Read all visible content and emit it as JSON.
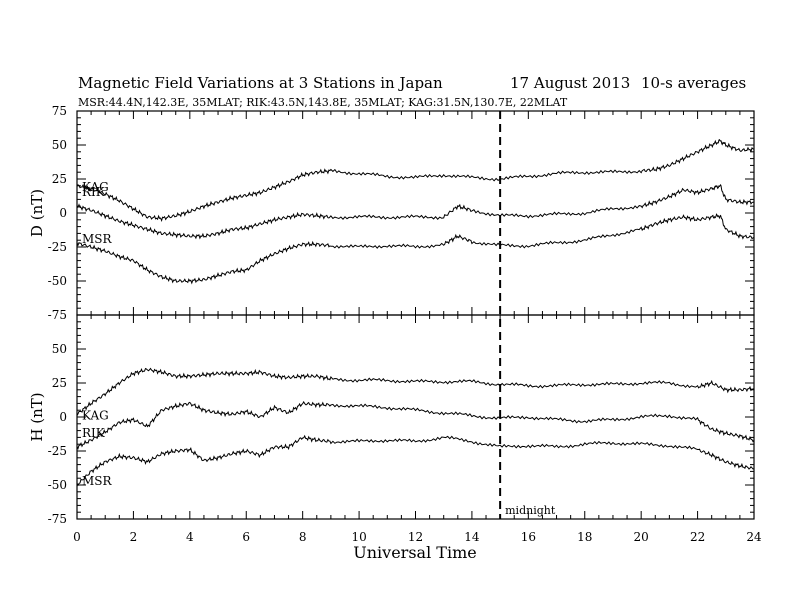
{
  "chart_data": {
    "type": "line",
    "title": "Magnetic Field Variations at 3 Stations in Japan",
    "date": "17  August  2013",
    "averaging": "10-s averages",
    "subtitle": "MSR:44.4N,142.3E, 35MLAT;  RIK:43.5N,143.8E, 35MLAT;  KAG:31.5N,130.7E, 22MLAT",
    "xlabel": "Universal Time",
    "xlim": [
      0,
      24
    ],
    "xticks": [
      "0",
      "2",
      "4",
      "6",
      "8",
      "10",
      "12",
      "14",
      "16",
      "18",
      "20",
      "22",
      "24"
    ],
    "marker": {
      "x": 15,
      "label": "midnight"
    },
    "panels": [
      {
        "ylabel": "D (nT)",
        "ylim": [
          -75,
          75
        ],
        "yticks": [
          "75",
          "50",
          "25",
          "0",
          "-25",
          "-50",
          "-75"
        ],
        "series": [
          {
            "name": "KAG",
            "x": [
              0,
              0.5,
              1,
              1.5,
              2,
              2.5,
              3,
              3.5,
              4,
              4.5,
              5,
              5.5,
              6,
              6.5,
              7,
              7.5,
              8,
              8.5,
              9,
              10,
              11,
              12,
              13,
              14,
              15,
              16,
              17,
              18,
              19,
              20,
              20.5,
              21,
              21.5,
              22,
              22.5,
              22.8,
              23,
              23.5,
              24
            ],
            "y": [
              20,
              18,
              14,
              9,
              3,
              -3,
              -4,
              -2,
              1,
              5,
              8,
              11,
              13,
              15,
              19,
              23,
              28,
              30,
              31,
              29,
              27,
              26,
              28,
              26,
              25,
              27,
              29,
              30,
              30,
              31,
              32,
              35,
              40,
              45,
              50,
              53,
              50,
              46,
              47
            ]
          },
          {
            "name": "RIK",
            "x": [
              0,
              0.5,
              1,
              1.5,
              2,
              2.5,
              3,
              3.5,
              4,
              4.5,
              5,
              5.5,
              6,
              6.5,
              7,
              7.5,
              8,
              8.5,
              9,
              10,
              11,
              12,
              13,
              13.5,
              14,
              15,
              16,
              17,
              18,
              19,
              20,
              20.5,
              21,
              21.5,
              22,
              22.5,
              22.8,
              23,
              23.5,
              24
            ],
            "y": [
              5,
              2,
              -2,
              -6,
              -9,
              -12,
              -15,
              -16,
              -17,
              -17,
              -15,
              -12,
              -11,
              -8,
              -5,
              -3,
              -1,
              -2,
              -3,
              -3,
              -3,
              -3,
              -3,
              5,
              2,
              -2,
              -2,
              -1,
              0,
              3,
              5,
              8,
              12,
              17,
              15,
              18,
              20,
              10,
              8,
              8
            ]
          },
          {
            "name": "MSR",
            "x": [
              0,
              0.5,
              1,
              1.5,
              2,
              2.5,
              3,
              3.5,
              4,
              4.5,
              5,
              5.5,
              6,
              6.5,
              7,
              7.5,
              8,
              8.5,
              9,
              10,
              11,
              12,
              13,
              13.5,
              14,
              15,
              16,
              17,
              18,
              19,
              20,
              20.5,
              21,
              21.5,
              22,
              22.5,
              22.8,
              23,
              23.5,
              24
            ],
            "y": [
              -22,
              -25,
              -28,
              -32,
              -35,
              -42,
              -47,
              -50,
              -50,
              -49,
              -46,
              -43,
              -42,
              -35,
              -30,
              -26,
              -23,
              -23,
              -24,
              -25,
              -24,
              -25,
              -23,
              -17,
              -21,
              -24,
              -24,
              -22,
              -20,
              -16,
              -12,
              -8,
              -5,
              -3,
              -5,
              -3,
              -2,
              -12,
              -17,
              -18
            ]
          }
        ]
      },
      {
        "ylabel": "H (nT)",
        "ylim": [
          -75,
          75
        ],
        "yticks": [
          "",
          "50",
          "25",
          "0",
          "-25",
          "-50",
          "-75"
        ],
        "series": [
          {
            "name": "KAG",
            "x": [
              0,
              0.5,
              1,
              1.5,
              2,
              2.5,
              3,
              3.5,
              4,
              4.5,
              5,
              5.5,
              6,
              6.5,
              7,
              7.5,
              8,
              8.5,
              9,
              10,
              11,
              12,
              13,
              14,
              15,
              16,
              17,
              18,
              19,
              20,
              21,
              22,
              22.5,
              23,
              23.5,
              24
            ],
            "y": [
              2,
              10,
              17,
              25,
              32,
              35,
              33,
              30,
              30,
              31,
              32,
              32,
              32,
              33,
              30,
              29,
              30,
              30,
              28,
              27,
              27,
              26,
              26,
              26,
              24,
              23,
              23,
              24,
              24,
              25,
              25,
              22,
              25,
              20,
              20,
              21
            ]
          },
          {
            "name": "RIK",
            "x": [
              0,
              0.5,
              1,
              1.5,
              2,
              2.5,
              3,
              3.5,
              4,
              4.5,
              5,
              5.5,
              6,
              6.5,
              7,
              7.5,
              8,
              8.5,
              9,
              10,
              11,
              12,
              13,
              14,
              15,
              16,
              17,
              18,
              19,
              20,
              21,
              22,
              22.5,
              23,
              23.5,
              24
            ],
            "y": [
              -22,
              -17,
              -11,
              -4,
              -2,
              -7,
              5,
              8,
              10,
              5,
              3,
              2,
              4,
              0,
              7,
              3,
              10,
              9,
              9,
              8,
              7,
              5,
              3,
              1,
              -1,
              0,
              -2,
              -3,
              -2,
              0,
              1,
              -2,
              -9,
              -12,
              -14,
              -17
            ]
          },
          {
            "name": "MSR",
            "x": [
              0,
              0.5,
              1,
              1.5,
              2,
              2.5,
              3,
              3.5,
              4,
              4.5,
              5,
              5.5,
              6,
              6.5,
              7,
              7.5,
              8,
              8.5,
              9,
              10,
              11,
              12,
              13,
              14,
              15,
              16,
              17,
              18,
              19,
              20,
              21,
              22,
              22.5,
              23,
              23.5,
              24
            ],
            "y": [
              -50,
              -40,
              -33,
              -29,
              -30,
              -33,
              -27,
              -25,
              -24,
              -32,
              -30,
              -27,
              -25,
              -28,
              -22,
              -22,
              -15,
              -17,
              -18,
              -18,
              -17,
              -18,
              -15,
              -18,
              -22,
              -21,
              -22,
              -20,
              -19,
              -20,
              -21,
              -24,
              -28,
              -33,
              -36,
              -38
            ]
          }
        ]
      }
    ]
  }
}
